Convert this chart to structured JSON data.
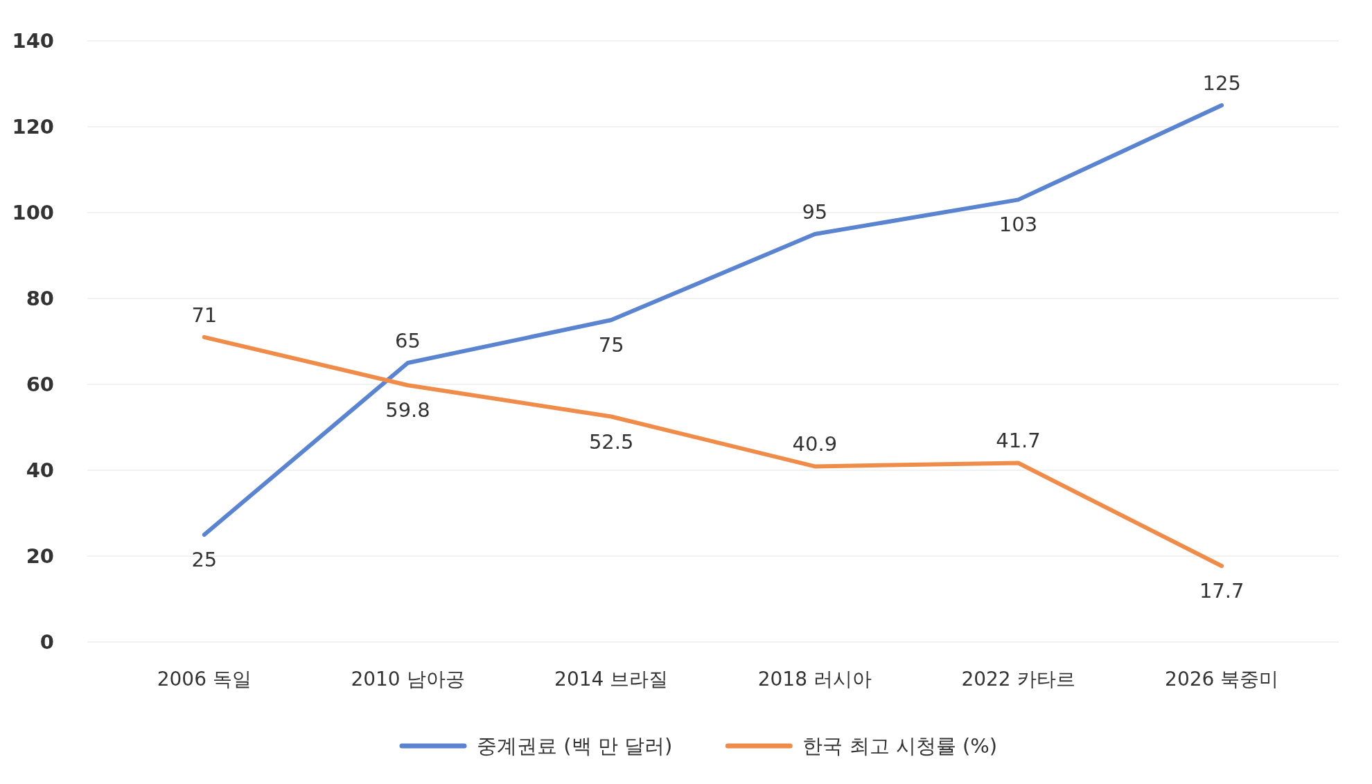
{
  "chart_data": {
    "type": "line",
    "categories": [
      "2006 독일",
      "2010 남아공",
      "2014 브라질",
      "2018 러시아",
      "2022 카타르",
      "2026 북중미"
    ],
    "series": [
      {
        "name": "중계권료 (백 만 달러)",
        "color": "#5b84d0",
        "values": [
          25,
          65,
          75,
          95,
          103,
          125
        ]
      },
      {
        "name": "한국 최고 시청률 (%)",
        "color": "#f08c4a",
        "values": [
          71,
          59.8,
          52.5,
          40.9,
          41.7,
          17.7
        ]
      }
    ],
    "ylim": [
      0,
      140
    ],
    "yticks": [
      0,
      20,
      40,
      60,
      80,
      100,
      120,
      140
    ],
    "grid": "y",
    "legend": "bottom",
    "data_labels": true,
    "marker": "none",
    "line_style": "solid"
  }
}
